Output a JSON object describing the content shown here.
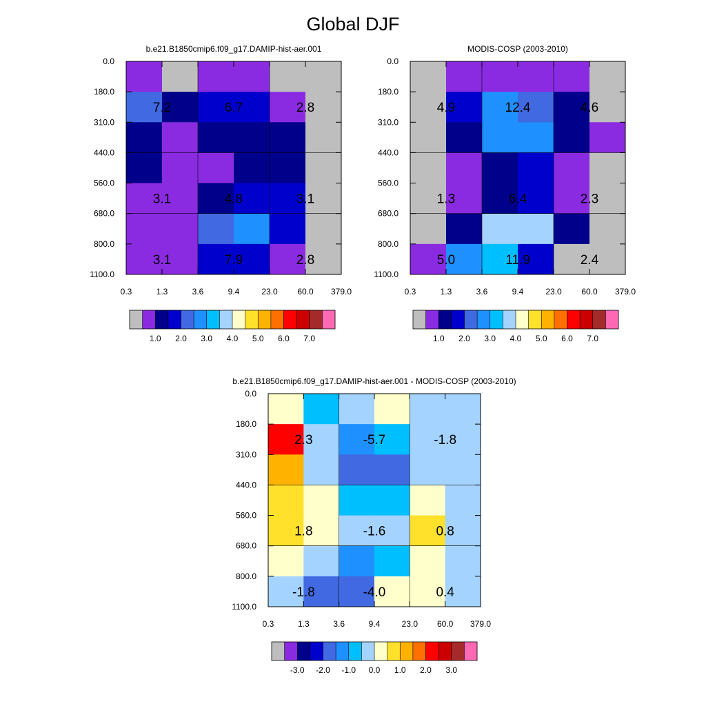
{
  "title": "Global DJF",
  "colors": {
    "model_levels": [
      "#bebebe",
      "#8a2be2",
      "#00008b",
      "#0000cd",
      "#4169e1",
      "#1e90ff",
      "#00bfff",
      "#a4d3ff",
      "#ffffcc",
      "#ffe12b",
      "#ffb300",
      "#ff7000",
      "#ff0000",
      "#cc0000",
      "#a52a2a",
      "#ff69b4"
    ],
    "diff_levels": [
      "#bebebe",
      "#8a2be2",
      "#00008b",
      "#0000cd",
      "#4169e1",
      "#1e90ff",
      "#00bfff",
      "#a4d3ff",
      "#ffffcc",
      "#ffe12b",
      "#ffb300",
      "#ff7000",
      "#ff0000",
      "#cc0000",
      "#a52a2a",
      "#ff69b4"
    ]
  },
  "chart_data": [
    {
      "type": "heatmap",
      "title": "b.e21.B1850cmip6.f09_g17.DAMIP-hist-aer.001",
      "x_ticks": [
        "0.3",
        "1.3",
        "3.6",
        "9.4",
        "23.0",
        "60.0",
        "379.0"
      ],
      "y_ticks": [
        "0.0",
        "180.0",
        "310.0",
        "440.0",
        "560.0",
        "680.0",
        "800.0",
        "1100.0"
      ],
      "cells": [
        [
          1,
          0,
          1,
          1,
          0,
          0
        ],
        [
          4,
          2,
          3,
          3,
          1,
          0
        ],
        [
          2,
          1,
          2,
          2,
          2,
          0
        ],
        [
          2,
          1,
          1,
          2,
          2,
          0
        ],
        [
          1,
          1,
          2,
          3,
          3,
          0
        ],
        [
          1,
          1,
          4,
          5,
          3,
          0
        ],
        [
          1,
          1,
          3,
          3,
          1,
          0
        ]
      ],
      "annotations": [
        {
          "col": 0,
          "row": 1,
          "text": "7.2"
        },
        {
          "col": 1,
          "row": 1,
          "text": "6.7"
        },
        {
          "col": 2,
          "row": 1,
          "text": "2.8"
        },
        {
          "col": 0,
          "row": 4,
          "text": "3.1"
        },
        {
          "col": 1,
          "row": 4,
          "text": "4.8"
        },
        {
          "col": 2,
          "row": 4,
          "text": "3.1"
        },
        {
          "col": 0,
          "row": 6,
          "text": "3.1"
        },
        {
          "col": 1,
          "row": 6,
          "text": "7.9"
        },
        {
          "col": 2,
          "row": 6,
          "text": "2.8"
        }
      ],
      "colorbar": {
        "labels": [
          "1.0",
          "2.0",
          "3.0",
          "4.0",
          "5.0",
          "6.0",
          "7.0"
        ]
      }
    },
    {
      "type": "heatmap",
      "title": "MODIS-COSP (2003-2010)",
      "x_ticks": [
        "0.3",
        "1.3",
        "3.6",
        "9.4",
        "23.0",
        "60.0",
        "379.0"
      ],
      "y_ticks": [
        "0.0",
        "180.0",
        "310.0",
        "440.0",
        "560.0",
        "680.0",
        "800.0",
        "1100.0"
      ],
      "cells": [
        [
          0,
          1,
          1,
          1,
          1,
          0
        ],
        [
          0,
          3,
          5,
          4,
          2,
          0
        ],
        [
          0,
          2,
          5,
          5,
          2,
          1
        ],
        [
          0,
          1,
          2,
          3,
          1,
          0
        ],
        [
          0,
          1,
          2,
          3,
          1,
          0
        ],
        [
          0,
          2,
          7,
          7,
          2,
          0
        ],
        [
          1,
          5,
          6,
          3,
          0,
          0
        ]
      ],
      "annotations": [
        {
          "col": 0,
          "row": 1,
          "text": "4.9"
        },
        {
          "col": 1,
          "row": 1,
          "text": "12.4"
        },
        {
          "col": 2,
          "row": 1,
          "text": "4.6"
        },
        {
          "col": 0,
          "row": 4,
          "text": "1.3"
        },
        {
          "col": 1,
          "row": 4,
          "text": "6.4"
        },
        {
          "col": 2,
          "row": 4,
          "text": "2.3"
        },
        {
          "col": 0,
          "row": 6,
          "text": "5.0"
        },
        {
          "col": 1,
          "row": 6,
          "text": "11.9"
        },
        {
          "col": 2,
          "row": 6,
          "text": "2.4"
        }
      ],
      "colorbar": {
        "labels": [
          "1.0",
          "2.0",
          "3.0",
          "4.0",
          "5.0",
          "6.0",
          "7.0"
        ]
      }
    },
    {
      "type": "heatmap",
      "title": "b.e21.B1850cmip6.f09_g17.DAMIP-hist-aer.001 - MODIS-COSP (2003-2010)",
      "x_ticks": [
        "0.3",
        "1.3",
        "3.6",
        "9.4",
        "23.0",
        "60.0",
        "379.0"
      ],
      "y_ticks": [
        "0.0",
        "180.0",
        "310.0",
        "440.0",
        "560.0",
        "680.0",
        "800.0",
        "1100.0"
      ],
      "cells": [
        [
          8,
          6,
          7,
          8,
          7,
          7
        ],
        [
          12,
          7,
          5,
          6,
          7,
          7
        ],
        [
          10,
          7,
          4,
          4,
          7,
          7
        ],
        [
          9,
          8,
          6,
          6,
          8,
          7
        ],
        [
          9,
          8,
          7,
          7,
          9,
          7
        ],
        [
          8,
          7,
          5,
          6,
          8,
          7
        ],
        [
          7,
          4,
          4,
          8,
          8,
          7
        ]
      ],
      "annotations": [
        {
          "col": 0,
          "row": 1,
          "text": "2.3"
        },
        {
          "col": 1,
          "row": 1,
          "text": "-5.7"
        },
        {
          "col": 2,
          "row": 1,
          "text": "-1.8"
        },
        {
          "col": 0,
          "row": 4,
          "text": "1.8"
        },
        {
          "col": 1,
          "row": 4,
          "text": "-1.6"
        },
        {
          "col": 2,
          "row": 4,
          "text": "0.8"
        },
        {
          "col": 0,
          "row": 6,
          "text": "-1.8"
        },
        {
          "col": 1,
          "row": 6,
          "text": "-4.0"
        },
        {
          "col": 2,
          "row": 6,
          "text": "0.4"
        }
      ],
      "colorbar": {
        "labels": [
          "-3.0",
          "-2.0",
          "-1.0",
          "0.0",
          "1.0",
          "2.0",
          "3.0"
        ]
      }
    }
  ]
}
